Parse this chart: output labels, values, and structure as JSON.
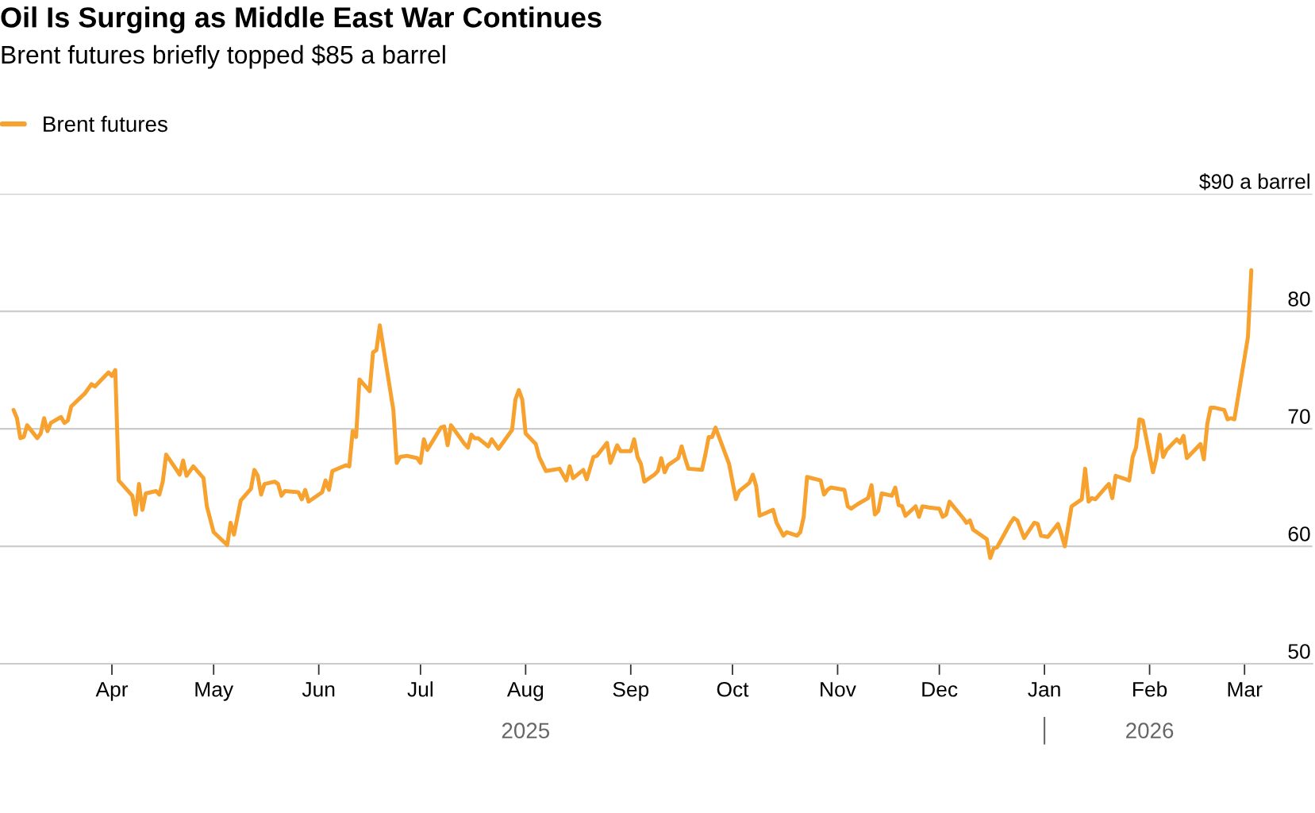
{
  "chart_data": {
    "type": "line",
    "title": "Oil Is Surging as Middle East War Continues",
    "subtitle": "Brent futures briefly topped $85 a barrel",
    "x": [
      "2025-03-03",
      "2025-03-04",
      "2025-03-05",
      "2025-03-06",
      "2025-03-07",
      "2025-03-10",
      "2025-03-11",
      "2025-03-12",
      "2025-03-13",
      "2025-03-14",
      "2025-03-17",
      "2025-03-18",
      "2025-03-19",
      "2025-03-20",
      "2025-03-24",
      "2025-03-26",
      "2025-03-27",
      "2025-03-31",
      "2025-04-01",
      "2025-04-02",
      "2025-04-03",
      "2025-04-07",
      "2025-04-08",
      "2025-04-09",
      "2025-04-10",
      "2025-04-11",
      "2025-04-14",
      "2025-04-15",
      "2025-04-16",
      "2025-04-17",
      "2025-04-21",
      "2025-04-22",
      "2025-04-23",
      "2025-04-25",
      "2025-04-28",
      "2025-04-29",
      "2025-05-01",
      "2025-05-05",
      "2025-05-06",
      "2025-05-07",
      "2025-05-09",
      "2025-05-12",
      "2025-05-13",
      "2025-05-14",
      "2025-05-15",
      "2025-05-16",
      "2025-05-19",
      "2025-05-20",
      "2025-05-21",
      "2025-05-22",
      "2025-05-26",
      "2025-05-27",
      "2025-05-28",
      "2025-05-29",
      "2025-06-02",
      "2025-06-03",
      "2025-06-04",
      "2025-06-05",
      "2025-06-09",
      "2025-06-10",
      "2025-06-11",
      "2025-06-12",
      "2025-06-13",
      "2025-06-16",
      "2025-06-17",
      "2025-06-18",
      "2025-06-19",
      "2025-06-23",
      "2025-06-24",
      "2025-06-25",
      "2025-06-27",
      "2025-06-30",
      "2025-07-01",
      "2025-07-02",
      "2025-07-03",
      "2025-07-07",
      "2025-07-08",
      "2025-07-09",
      "2025-07-10",
      "2025-07-14",
      "2025-07-15",
      "2025-07-16",
      "2025-07-17",
      "2025-07-18",
      "2025-07-21",
      "2025-07-22",
      "2025-07-24",
      "2025-07-28",
      "2025-07-29",
      "2025-07-30",
      "2025-07-31",
      "2025-08-01",
      "2025-08-04",
      "2025-08-05",
      "2025-08-07",
      "2025-08-11",
      "2025-08-13",
      "2025-08-14",
      "2025-08-15",
      "2025-08-18",
      "2025-08-19",
      "2025-08-21",
      "2025-08-22",
      "2025-08-25",
      "2025-08-26",
      "2025-08-28",
      "2025-08-29",
      "2025-09-01",
      "2025-09-02",
      "2025-09-03",
      "2025-09-04",
      "2025-09-05",
      "2025-09-08",
      "2025-09-09",
      "2025-09-10",
      "2025-09-11",
      "2025-09-12",
      "2025-09-15",
      "2025-09-16",
      "2025-09-17",
      "2025-09-18",
      "2025-09-22",
      "2025-09-23",
      "2025-09-24",
      "2025-09-25",
      "2025-09-26",
      "2025-09-30",
      "2025-10-02",
      "2025-10-03",
      "2025-10-06",
      "2025-10-07",
      "2025-10-08",
      "2025-10-09",
      "2025-10-13",
      "2025-10-14",
      "2025-10-16",
      "2025-10-17",
      "2025-10-20",
      "2025-10-21",
      "2025-10-22",
      "2025-10-23",
      "2025-10-27",
      "2025-10-28",
      "2025-10-29",
      "2025-10-30",
      "2025-11-03",
      "2025-11-04",
      "2025-11-05",
      "2025-11-07",
      "2025-11-10",
      "2025-11-11",
      "2025-11-12",
      "2025-11-13",
      "2025-11-14",
      "2025-11-17",
      "2025-11-18",
      "2025-11-19",
      "2025-11-20",
      "2025-11-21",
      "2025-11-24",
      "2025-11-25",
      "2025-11-26",
      "2025-11-28",
      "2025-12-01",
      "2025-12-02",
      "2025-12-03",
      "2025-12-04",
      "2025-12-08",
      "2025-12-09",
      "2025-12-10",
      "2025-12-11",
      "2025-12-15",
      "2025-12-16",
      "2025-12-17",
      "2025-12-18",
      "2025-12-22",
      "2025-12-23",
      "2025-12-24",
      "2025-12-26",
      "2025-12-29",
      "2025-12-30",
      "2025-12-31",
      "2026-01-02",
      "2026-01-05",
      "2026-01-06",
      "2026-01-07",
      "2026-01-09",
      "2026-01-12",
      "2026-01-13",
      "2026-01-14",
      "2026-01-15",
      "2026-01-16",
      "2026-01-19",
      "2026-01-20",
      "2026-01-21",
      "2026-01-22",
      "2026-01-26",
      "2026-01-27",
      "2026-01-28",
      "2026-01-29",
      "2026-01-30",
      "2026-02-02",
      "2026-02-03",
      "2026-02-04",
      "2026-02-05",
      "2026-02-06",
      "2026-02-09",
      "2026-02-10",
      "2026-02-11",
      "2026-02-12",
      "2026-02-16",
      "2026-02-17",
      "2026-02-18",
      "2026-02-19",
      "2026-02-20",
      "2026-02-23",
      "2026-02-24",
      "2026-02-25",
      "2026-02-26",
      "2026-03-02",
      "2026-03-03"
    ],
    "series": [
      {
        "name": "Brent futures",
        "color": "#f7a12f",
        "values": [
          71.6,
          70.9,
          69.2,
          69.3,
          70.3,
          69.2,
          69.6,
          70.9,
          69.8,
          70.5,
          71.0,
          70.5,
          70.7,
          71.9,
          73.0,
          73.8,
          73.6,
          74.8,
          74.5,
          75.0,
          65.6,
          64.3,
          62.7,
          65.3,
          63.1,
          64.5,
          64.7,
          64.4,
          65.5,
          67.8,
          66.1,
          67.3,
          66.0,
          66.8,
          65.8,
          63.4,
          61.2,
          60.1,
          62.0,
          61.0,
          63.9,
          64.9,
          66.5,
          66.0,
          64.4,
          65.3,
          65.5,
          65.3,
          64.3,
          64.7,
          64.6,
          64.0,
          64.8,
          63.8,
          64.6,
          65.6,
          64.8,
          66.4,
          66.9,
          66.8,
          69.8,
          69.3,
          74.2,
          73.2,
          76.5,
          76.7,
          78.8,
          71.6,
          67.1,
          67.6,
          67.7,
          67.5,
          67.1,
          69.1,
          68.2,
          70.1,
          70.2,
          68.6,
          70.3,
          68.7,
          68.4,
          69.5,
          69.2,
          69.2,
          68.5,
          69.1,
          68.3,
          69.9,
          72.5,
          73.3,
          72.5,
          69.6,
          68.7,
          67.6,
          66.4,
          66.6,
          65.6,
          66.8,
          65.8,
          66.5,
          65.7,
          67.6,
          67.7,
          68.8,
          67.1,
          68.6,
          68.1,
          68.1,
          69.1,
          67.6,
          67.0,
          65.5,
          66.1,
          66.4,
          67.5,
          66.3,
          66.9,
          67.5,
          68.5,
          67.5,
          66.6,
          66.5,
          67.8,
          69.3,
          69.3,
          70.1,
          67.0,
          64.0,
          64.7,
          65.4,
          66.1,
          65.1,
          62.6,
          63.1,
          62.0,
          60.9,
          61.2,
          60.9,
          61.2,
          62.5,
          65.9,
          65.6,
          64.4,
          64.8,
          65.0,
          64.8,
          63.4,
          63.2,
          63.6,
          64.1,
          65.2,
          62.7,
          63.0,
          64.5,
          64.3,
          65.0,
          63.5,
          63.4,
          62.6,
          63.4,
          62.5,
          63.4,
          63.3,
          63.2,
          62.5,
          62.7,
          63.8,
          62.4,
          62.0,
          62.2,
          61.4,
          60.6,
          59.0,
          59.8,
          59.9,
          62.0,
          62.4,
          62.2,
          60.7,
          62.0,
          61.9,
          60.9,
          60.8,
          61.9,
          61.0,
          60.0,
          63.4,
          64.0,
          66.6,
          63.8,
          64.1,
          64.0,
          65.0,
          65.3,
          64.1,
          66.0,
          65.6,
          67.6,
          68.4,
          70.8,
          70.7,
          66.3,
          67.5,
          69.5,
          67.6,
          68.2,
          69.1,
          68.8,
          69.4,
          67.5,
          68.7,
          67.4,
          70.4,
          71.8,
          71.8,
          71.6,
          70.8,
          70.9,
          70.8,
          77.8,
          83.5
        ]
      }
    ],
    "xlim": [
      "2025-02-27",
      "2026-03-21"
    ],
    "xticks": [
      {
        "value": "2025-04-01",
        "label": "Apr"
      },
      {
        "value": "2025-05-01",
        "label": "May"
      },
      {
        "value": "2025-06-01",
        "label": "Jun"
      },
      {
        "value": "2025-07-01",
        "label": "Jul"
      },
      {
        "value": "2025-08-01",
        "label": "Aug"
      },
      {
        "value": "2025-09-01",
        "label": "Sep"
      },
      {
        "value": "2025-10-01",
        "label": "Oct"
      },
      {
        "value": "2025-11-01",
        "label": "Nov"
      },
      {
        "value": "2025-12-01",
        "label": "Dec"
      },
      {
        "value": "2026-01-01",
        "label": "Jan"
      },
      {
        "value": "2026-02-01",
        "label": "Feb"
      },
      {
        "value": "2026-03-01",
        "label": "Mar"
      }
    ],
    "x2lim": [
      "2025-02-27",
      "2026-03-21"
    ],
    "x2ticks": [
      {
        "value": "2025-08-01",
        "label": "2025"
      },
      {
        "value": "2026-01-01",
        "label": null
      },
      {
        "value": "2026-02-01",
        "label": "2026"
      }
    ],
    "ylim": [
      50,
      90
    ],
    "yticks": [
      50,
      60,
      70,
      80,
      {
        "value": 90,
        "label": "$90 a barrel"
      }
    ],
    "grid": "y",
    "legend": "top left",
    "line_style": "solid",
    "marker": "none"
  }
}
